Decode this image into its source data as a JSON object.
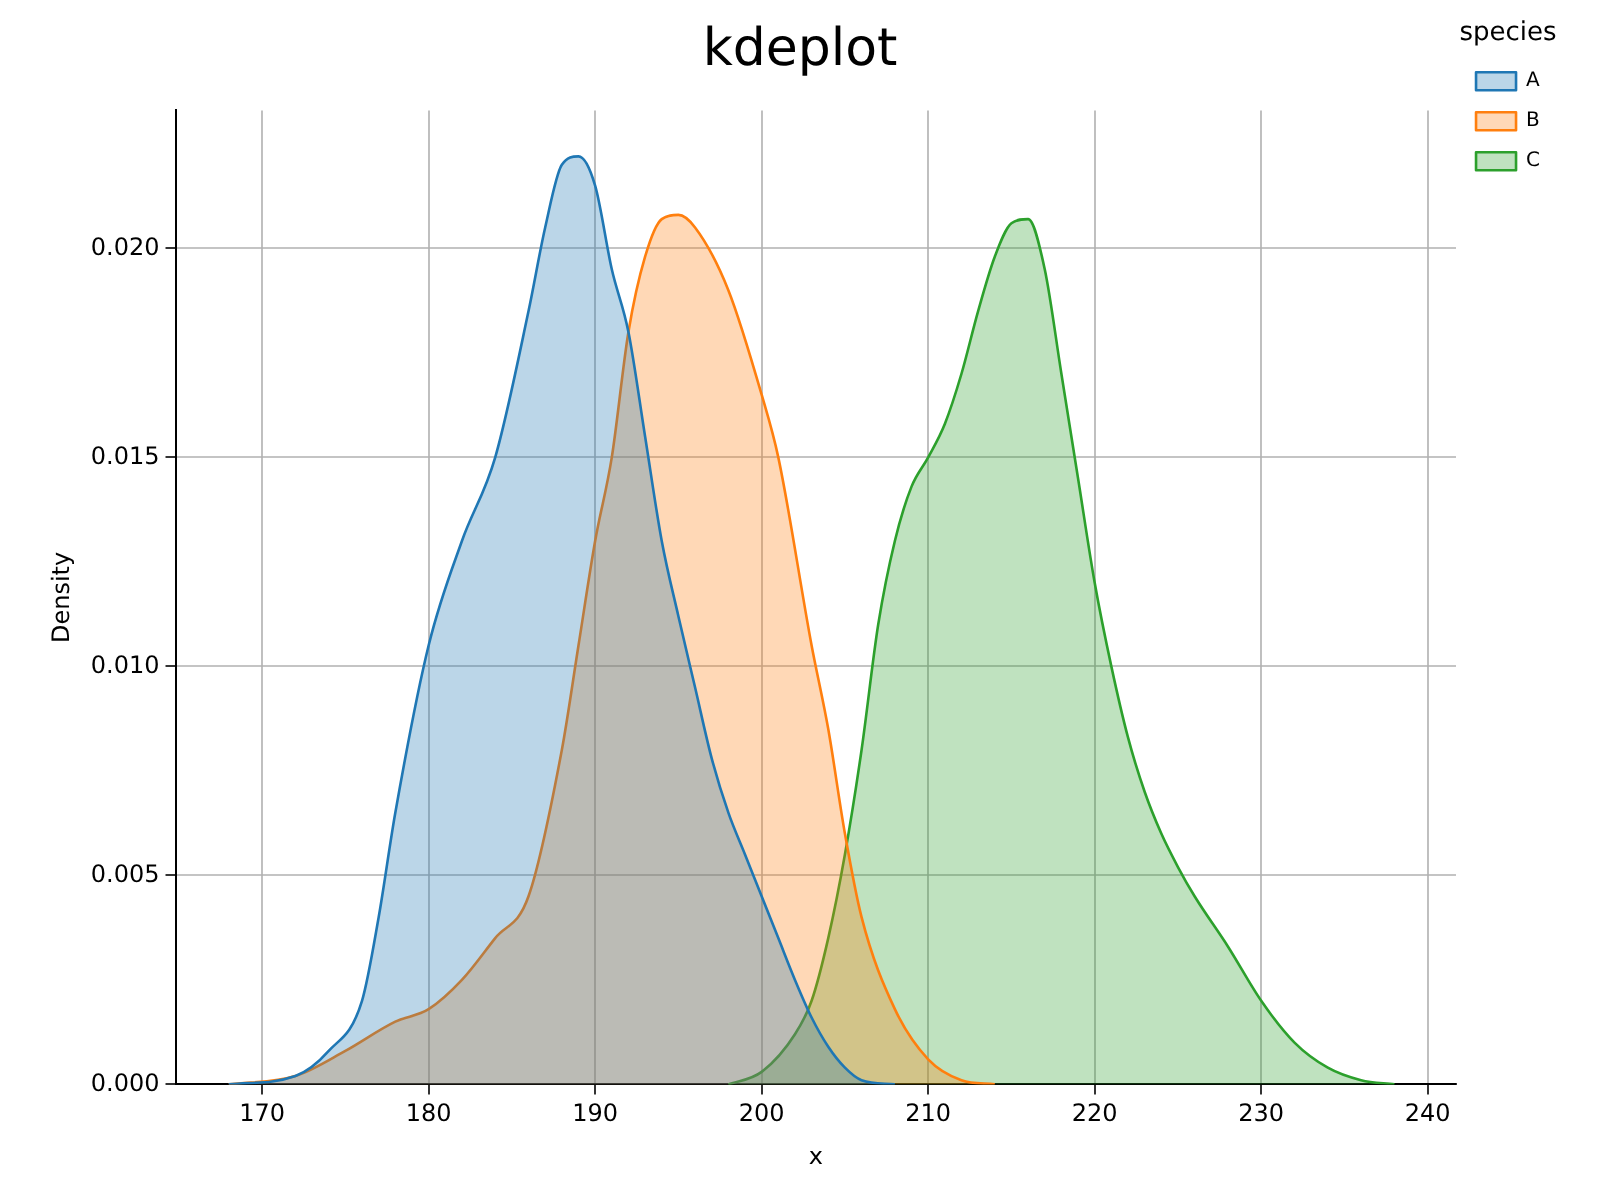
{
  "chart_data": {
    "type": "area",
    "title": "kdeplot",
    "xlabel": "x",
    "ylabel": "Density",
    "legend_title": "species",
    "legend": "top right",
    "grid": true,
    "xlim": [
      164.8,
      241.7
    ],
    "xticks": [
      170,
      180,
      190,
      200,
      210,
      220,
      230,
      240
    ],
    "ylim": [
      0,
      0.0233
    ],
    "yticks": [
      {
        "value": 0,
        "label": "0.000"
      },
      {
        "value": 0.005,
        "label": "0.005"
      },
      {
        "value": 0.01,
        "label": "0.010"
      },
      {
        "value": 0.015,
        "label": "0.015"
      },
      {
        "value": 0.02,
        "label": "0.020"
      }
    ],
    "series": [
      {
        "name": "A",
        "color": "#1f77b4",
        "x": [
          168,
          172,
          174,
          176,
          177,
          178,
          180,
          182,
          184,
          186,
          187,
          188,
          189,
          190,
          191,
          192,
          193,
          194,
          195,
          196,
          197,
          198,
          199,
          200,
          201,
          202,
          203,
          204,
          205,
          206,
          208
        ],
        "values": [
          0,
          0.0002,
          0.0008,
          0.002,
          0.004,
          0.0065,
          0.0105,
          0.013,
          0.015,
          0.0185,
          0.0205,
          0.022,
          0.0222,
          0.0215,
          0.0195,
          0.018,
          0.0155,
          0.013,
          0.0112,
          0.0095,
          0.0078,
          0.0065,
          0.0055,
          0.0045,
          0.0035,
          0.0025,
          0.0016,
          0.0009,
          0.0004,
          0.0001,
          0
        ]
      },
      {
        "name": "B",
        "color": "#ff7f0e",
        "x": [
          168,
          172,
          175,
          178,
          180,
          182,
          184,
          186,
          188,
          189,
          190,
          191,
          192,
          193,
          194,
          195,
          196,
          198,
          200,
          201,
          203,
          204,
          205,
          206,
          208,
          210,
          212,
          214
        ],
        "values": [
          0,
          0.0002,
          0.0008,
          0.0015,
          0.0018,
          0.0025,
          0.0035,
          0.0045,
          0.008,
          0.0105,
          0.013,
          0.015,
          0.018,
          0.0198,
          0.0207,
          0.0208,
          0.0205,
          0.019,
          0.0165,
          0.015,
          0.0105,
          0.0085,
          0.006,
          0.004,
          0.0018,
          0.0006,
          0.0001,
          0
        ]
      },
      {
        "name": "C",
        "color": "#2ca02c",
        "x": [
          198,
          200,
          202,
          203,
          204,
          205,
          206,
          207,
          208,
          209,
          210,
          211,
          212,
          213,
          214,
          215,
          216,
          217,
          218,
          219,
          220,
          221,
          222,
          223,
          224,
          225,
          226,
          228,
          230,
          232,
          234,
          236,
          238
        ],
        "values": [
          0,
          0.0003,
          0.0012,
          0.002,
          0.0035,
          0.0055,
          0.008,
          0.011,
          0.013,
          0.0143,
          0.015,
          0.0158,
          0.017,
          0.0185,
          0.0198,
          0.0206,
          0.0207,
          0.0195,
          0.017,
          0.0145,
          0.012,
          0.01,
          0.0083,
          0.007,
          0.006,
          0.0052,
          0.0045,
          0.0033,
          0.002,
          0.001,
          0.0004,
          0.0001,
          0
        ]
      }
    ]
  }
}
